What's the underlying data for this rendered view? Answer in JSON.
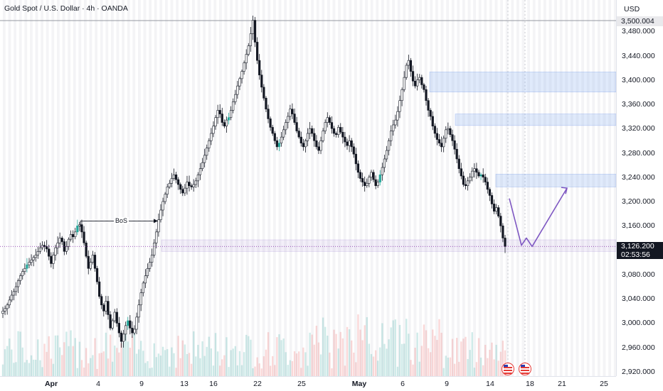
{
  "header": {
    "symbol_title": "Gold Spot / U.S. Dollar · 4h · OANDA"
  },
  "price_scale": {
    "currency": "USD",
    "ticks": [
      "3,480.000",
      "3,440.000",
      "3,400.000",
      "3,360.000",
      "3,320.000",
      "3,280.000",
      "3,240.000",
      "3,200.000",
      "3,160.000",
      "3,080.000",
      "3,040.000",
      "3,000.000",
      "2,960.000",
      "2,920.000"
    ],
    "high_label": "3,500.004",
    "last_price": "3,126.200",
    "countdown": "02:53:56"
  },
  "time_axis": {
    "labels": [
      {
        "text": "Apr",
        "bold": true
      },
      {
        "text": "4",
        "bold": false
      },
      {
        "text": "9",
        "bold": false
      },
      {
        "text": "13",
        "bold": false
      },
      {
        "text": "16",
        "bold": false
      },
      {
        "text": "22",
        "bold": false
      },
      {
        "text": "25",
        "bold": false
      },
      {
        "text": "May",
        "bold": true
      },
      {
        "text": "6",
        "bold": false
      },
      {
        "text": "9",
        "bold": false
      },
      {
        "text": "14",
        "bold": false
      },
      {
        "text": "18",
        "bold": false
      },
      {
        "text": "21",
        "bold": false
      },
      {
        "text": "25",
        "bold": false
      }
    ]
  },
  "annotations": {
    "bos_label": "BoS"
  },
  "chart_data": {
    "type": "candlestick",
    "instrument": "Gold Spot / U.S. Dollar",
    "interval": "4h",
    "y_range": [
      2910,
      3505
    ],
    "closes": [
      3020,
      3024,
      3030,
      3038,
      3046,
      3052,
      3060,
      3070,
      3078,
      3085,
      3090,
      3096,
      3100,
      3104,
      3108,
      3112,
      3118,
      3124,
      3128,
      3126,
      3122,
      3110,
      3098,
      3112,
      3124,
      3132,
      3140,
      3134,
      3118,
      3126,
      3138,
      3146,
      3142,
      3150,
      3160,
      3162,
      3150,
      3132,
      3110,
      3090,
      3100,
      3112,
      3090,
      3068,
      3044,
      3030,
      3020,
      3036,
      3014,
      2992,
      3004,
      3018,
      3000,
      2984,
      2970,
      2982,
      2996,
      3004,
      2992,
      2984,
      2990,
      3010,
      3030,
      3050,
      3066,
      3078,
      3090,
      3100,
      3112,
      3132,
      3150,
      3170,
      3186,
      3200,
      3212,
      3224,
      3230,
      3238,
      3244,
      3236,
      3228,
      3220,
      3214,
      3222,
      3232,
      3226,
      3224,
      3228,
      3234,
      3244,
      3254,
      3264,
      3276,
      3288,
      3300,
      3312,
      3324,
      3338,
      3350,
      3344,
      3330,
      3324,
      3334,
      3338,
      3350,
      3364,
      3376,
      3390,
      3402,
      3414,
      3428,
      3442,
      3456,
      3476,
      3498,
      3462,
      3432,
      3408,
      3388,
      3370,
      3352,
      3336,
      3322,
      3312,
      3300,
      3290,
      3296,
      3306,
      3318,
      3330,
      3340,
      3352,
      3344,
      3330,
      3316,
      3306,
      3296,
      3290,
      3300,
      3312,
      3320,
      3312,
      3300,
      3290,
      3284,
      3300,
      3316,
      3330,
      3338,
      3330,
      3320,
      3312,
      3310,
      3322,
      3314,
      3306,
      3298,
      3292,
      3300,
      3290,
      3278,
      3262,
      3248,
      3238,
      3232,
      3226,
      3230,
      3240,
      3248,
      3236,
      3226,
      3232,
      3244,
      3256,
      3270,
      3284,
      3300,
      3316,
      3326,
      3334,
      3348,
      3366,
      3384,
      3404,
      3424,
      3432,
      3414,
      3398,
      3390,
      3400,
      3404,
      3392,
      3384,
      3366,
      3350,
      3340,
      3324,
      3312,
      3302,
      3296,
      3290,
      3304,
      3318,
      3320,
      3310,
      3300,
      3286,
      3270,
      3254,
      3242,
      3228,
      3226,
      3234,
      3240,
      3250,
      3254,
      3248,
      3242,
      3244,
      3240,
      3232,
      3220,
      3210,
      3196,
      3184,
      3190,
      3176,
      3160,
      3140,
      3126.2
    ],
    "volume_count": 240,
    "last_price": 3126.2,
    "high": 3500.004,
    "bos_level": 3168,
    "zones": [
      {
        "type": "supply",
        "top": 3413,
        "bottom": 3380
      },
      {
        "type": "supply",
        "top": 3344,
        "bottom": 3325
      },
      {
        "type": "supply",
        "top": 3245,
        "bottom": 3224
      },
      {
        "type": "demand",
        "top": 3137,
        "bottom": 3118
      }
    ],
    "projection_path": [
      3205,
      3128,
      3140,
      3126,
      3222
    ]
  }
}
